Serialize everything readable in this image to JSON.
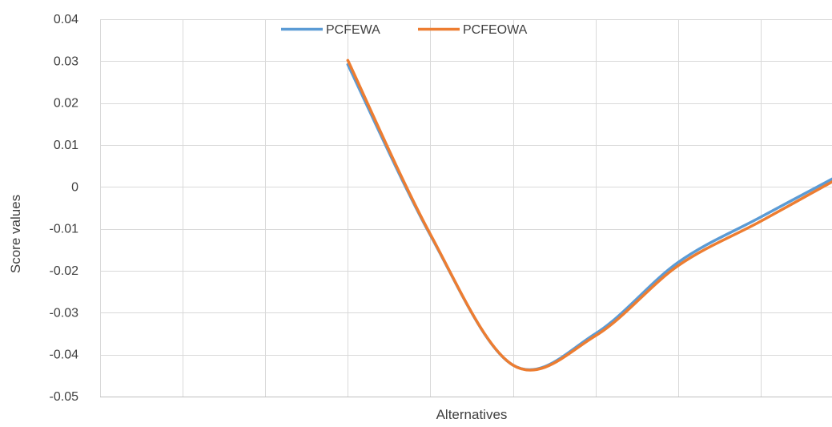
{
  "chart_data": {
    "type": "line",
    "title": "",
    "xlabel": "Alternatives",
    "ylabel": "Score values",
    "x": [
      1,
      2,
      3,
      4,
      5,
      6,
      7,
      8,
      9
    ],
    "ylim": [
      -0.05,
      0.04
    ],
    "yticks": [
      0.04,
      0.03,
      0.02,
      0.01,
      0,
      -0.01,
      -0.02,
      -0.03,
      -0.04,
      -0.05
    ],
    "ytick_labels": [
      "0.04",
      "0.03",
      "0.02",
      "0.01",
      "0",
      "-0.01",
      "-0.02",
      "-0.03",
      "-0.04",
      "-0.05"
    ],
    "grid": true,
    "legend_position": "top-center",
    "series": [
      {
        "name": "PCFEWA",
        "color": "#5B9BD5",
        "x": [
          3,
          4,
          5,
          6,
          7,
          8,
          9
        ],
        "values": [
          0.0292,
          -0.0115,
          -0.0425,
          -0.035,
          -0.018,
          -0.0072,
          0.0033
        ]
      },
      {
        "name": "PCFEOWA",
        "color": "#ED7D31",
        "x": [
          3,
          4,
          5,
          6,
          7,
          8,
          9
        ],
        "values": [
          0.0302,
          -0.0113,
          -0.0425,
          -0.0355,
          -0.0188,
          -0.0082,
          0.0027
        ]
      }
    ]
  }
}
